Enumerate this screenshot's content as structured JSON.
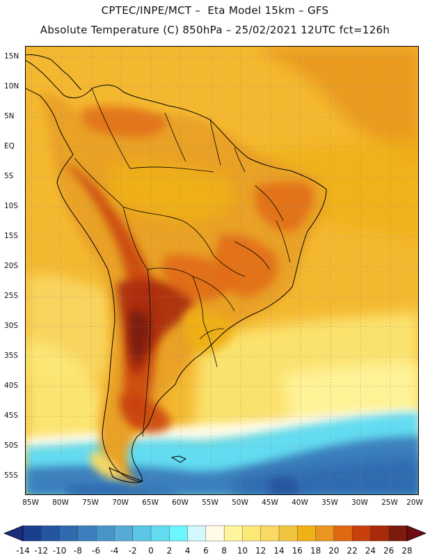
{
  "header": {
    "line1": "CPTEC/INPE/MCT –  Eta Model 15km – GFS",
    "line2": "Absolute Temperature (C) 850hPa – 25/02/2021 12UTC fct=126h"
  },
  "map": {
    "lat_labels": [
      "15N",
      "10N",
      "5N",
      "EQ",
      "5S",
      "10S",
      "15S",
      "20S",
      "25S",
      "30S",
      "35S",
      "40S",
      "45S",
      "50S",
      "55S"
    ],
    "lon_labels": [
      "85W",
      "80W",
      "75W",
      "70W",
      "65W",
      "60W",
      "55W",
      "50W",
      "45W",
      "40W",
      "35W",
      "30W",
      "25W",
      "20W"
    ],
    "extent": {
      "west": -86,
      "east": -20,
      "north": 16,
      "south": -59
    },
    "ocean_base_color": "#f4b830",
    "continent_color": "#e9a126"
  },
  "colorbar": {
    "labels": [
      "-14",
      "-12",
      "-10",
      "-8",
      "-6",
      "-4",
      "-2",
      "0",
      "2",
      "4",
      "6",
      "8",
      "10",
      "12",
      "14",
      "16",
      "18",
      "20",
      "22",
      "24",
      "26",
      "28"
    ],
    "colors": [
      "#1b3f8f",
      "#25559e",
      "#2f6aaf",
      "#3b80bd",
      "#4795c8",
      "#57aad6",
      "#5dc5e6",
      "#63dbf0",
      "#6cf4ff",
      "#d2f8fb",
      "#fffbe6",
      "#fff59c",
      "#fde978",
      "#f9d863",
      "#f1c440",
      "#efb117",
      "#e8961f",
      "#e16813",
      "#c9400d",
      "#a9290a",
      "#7c1a0c"
    ],
    "low_arrow_color": "#1a2c7a",
    "high_arrow_color": "#6e0a14"
  }
}
